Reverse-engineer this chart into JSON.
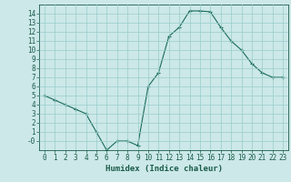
{
  "x": [
    0,
    1,
    2,
    3,
    4,
    5,
    6,
    7,
    8,
    9,
    10,
    11,
    12,
    13,
    14,
    15,
    16,
    17,
    18,
    19,
    20,
    21,
    22,
    23
  ],
  "y": [
    5,
    4.5,
    4,
    3.5,
    3,
    1,
    -1,
    0,
    0,
    -0.5,
    6,
    7.5,
    11.5,
    12.5,
    14.3,
    14.3,
    14.2,
    12.5,
    11,
    10,
    8.5,
    7.5,
    7,
    7
  ],
  "line_color": "#1a6b5a",
  "marker": "+",
  "bg_color": "#cce8e8",
  "grid_color": "#99cccc",
  "xlabel": "Humidex (Indice chaleur)",
  "ylim": [
    -1,
    15
  ],
  "xlim": [
    -0.5,
    23.5
  ],
  "yticks": [
    0,
    1,
    2,
    3,
    4,
    5,
    6,
    7,
    8,
    9,
    10,
    11,
    12,
    13,
    14
  ],
  "xticks": [
    0,
    1,
    2,
    3,
    4,
    5,
    6,
    7,
    8,
    9,
    10,
    11,
    12,
    13,
    14,
    15,
    16,
    17,
    18,
    19,
    20,
    21,
    22,
    23
  ],
  "font_color": "#1a5c4a",
  "tick_fontsize": 5.5,
  "label_fontsize": 6.5
}
